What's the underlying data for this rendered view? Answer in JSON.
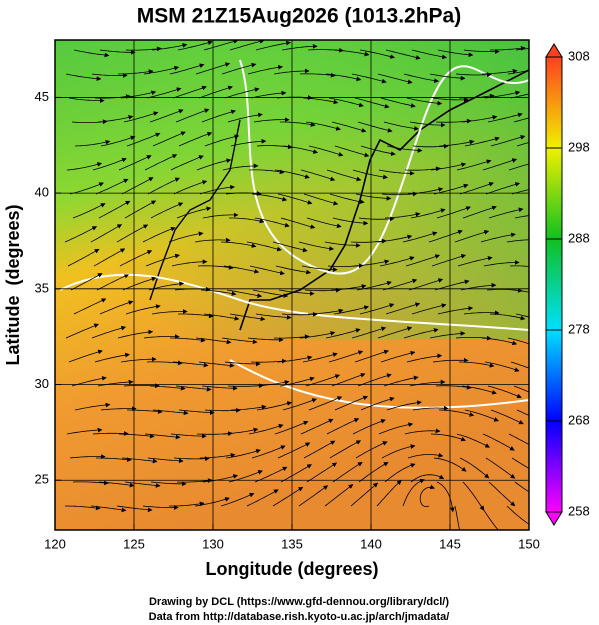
{
  "chart_data": {
    "type": "streamline",
    "title": "MSM 21Z15Aug2026 (1013.2hPa)",
    "x_label": "Longitude (degrees)",
    "y_label": "Latitude  (degrees)",
    "xlim": [
      120,
      150
    ],
    "ylim": [
      22.4,
      48
    ],
    "xticks": [
      120,
      125,
      130,
      135,
      140,
      145,
      150
    ],
    "yticks": [
      25,
      30,
      35,
      40,
      45
    ],
    "grid": true,
    "colorbar": {
      "lim": [
        258,
        308
      ],
      "ticks": [
        258,
        268,
        278,
        288,
        298,
        308
      ],
      "colors": [
        "#ff00ff",
        "#0000ff",
        "#00e0ff",
        "#10c020",
        "#f0f000",
        "#ff4020"
      ]
    }
  },
  "credits": [
    "Drawing by DCL (https://www.gfd-dennou.org/library/dcl/)",
    "Data from http://database.rish.kyoto-u.ac.jp/arch/jmadata/"
  ]
}
